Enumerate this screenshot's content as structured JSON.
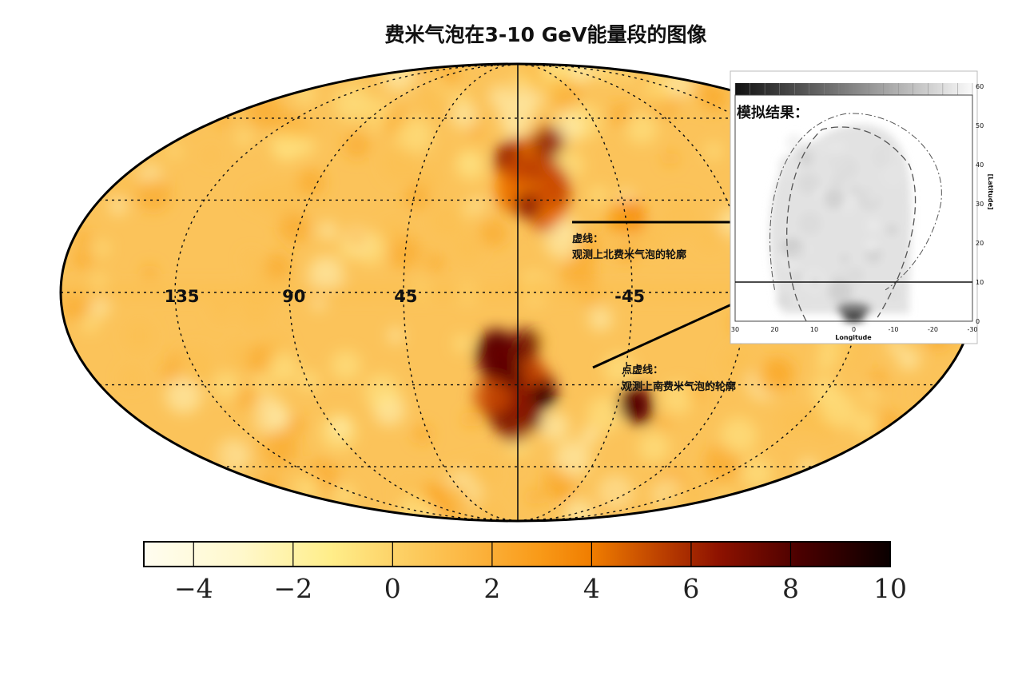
{
  "title": "费米气泡在3-10 GeV能量段的图像",
  "colors": {
    "background": "#ffffff",
    "map_base": "#fbc35a",
    "map_light": "#fde08d",
    "map_dark": "#3a0000",
    "grid": "#111111",
    "inset_bg": "#ffffff",
    "inset_fill": "#e4e4e4"
  },
  "chart_data": [
    {
      "type": "heatmap",
      "projection": "mollweide",
      "title": "费米气泡在3-10 GeV能量段的图像",
      "longitude_tick_labels": [
        "135",
        "90",
        "45",
        "-45"
      ],
      "grid": true,
      "colormap": [
        "#fffdf0",
        "#fff6c0",
        "#ffe98a",
        "#fcc04e",
        "#f9a21c",
        "#f57f00",
        "#c94800",
        "#8a1800",
        "#580000",
        "#200000"
      ],
      "colorbar": {
        "ticks": [
          -4,
          -2,
          0,
          2,
          4,
          6,
          8,
          10
        ],
        "tick_labels": [
          "−4",
          "−2",
          "0",
          "2",
          "4",
          "6",
          "8",
          "10"
        ],
        "range": [
          -5,
          10
        ],
        "position": "bottom"
      },
      "features": [
        {
          "name": "north bubble",
          "lon": -8,
          "lat": 37,
          "peak": 7
        },
        {
          "name": "south bubble",
          "lon": 0,
          "lat": -30,
          "peak": 9
        },
        {
          "name": "southern knot",
          "lon": -55,
          "lat": -38,
          "peak": 9
        },
        {
          "name": "northern knot",
          "lon": -45,
          "lat": 23,
          "peak": 5
        }
      ],
      "annotations": [
        {
          "label": "虚线：",
          "text": "观测上北费米气泡的轮廓"
        },
        {
          "label": "点虚线：",
          "text": "观测上南费米气泡的轮廓"
        }
      ]
    },
    {
      "type": "heatmap",
      "title": "模拟结果：",
      "xlabel": "Longitude",
      "ylabel": "[Latitude]",
      "xlim": [
        30,
        -30
      ],
      "ylim": [
        0,
        60
      ],
      "x_ticks": [
        30,
        20,
        10,
        0,
        -10,
        -20,
        -30
      ],
      "y_ticks": [
        0,
        10,
        20,
        30,
        40,
        50,
        60
      ],
      "reference_line_latitude": 10,
      "colormap": "grayscale",
      "grid": false
    }
  ]
}
